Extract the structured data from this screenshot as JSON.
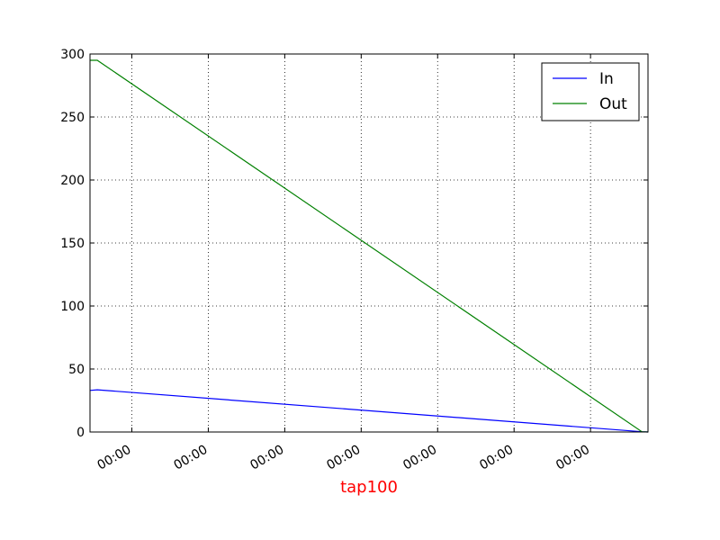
{
  "chart_data": {
    "type": "line",
    "xlabel": "tap100",
    "xlabel_color": "#ff0000",
    "ylim": [
      0,
      300
    ],
    "yticks": [
      0,
      50,
      100,
      150,
      200,
      250,
      300
    ],
    "xlim": [
      0,
      100
    ],
    "x_tick_positions": [
      7.5,
      21.2,
      34.9,
      48.6,
      62.3,
      76.0,
      89.7
    ],
    "x_tick_labels": [
      "00:00",
      "00:00",
      "00:00",
      "00:00",
      "00:00",
      "00:00",
      "00:00"
    ],
    "grid": true,
    "legend_position": "top-right",
    "series": [
      {
        "name": "In",
        "color": "#0000ff",
        "x": [
          0,
          1.3,
          98.9,
          100
        ],
        "y": [
          33,
          33.5,
          0.2,
          0
        ]
      },
      {
        "name": "Out",
        "color": "#008000",
        "x": [
          0,
          1.3,
          98.9,
          100
        ],
        "y": [
          295,
          295,
          0.2,
          0
        ]
      }
    ]
  }
}
